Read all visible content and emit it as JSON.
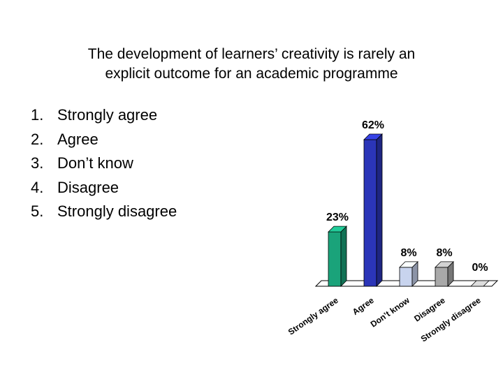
{
  "slide": {
    "title_line1": "The development of learners’ creativity is rarely an",
    "title_line2": "explicit outcome for an academic programme",
    "options": [
      {
        "num": "1.",
        "label": "Strongly agree"
      },
      {
        "num": "2.",
        "label": "Agree"
      },
      {
        "num": "3.",
        "label": "Don’t know"
      },
      {
        "num": "4.",
        "label": "Disagree"
      },
      {
        "num": "5.",
        "label": "Strongly disagree"
      }
    ]
  },
  "chart_data": {
    "type": "bar",
    "categories": [
      "Strongly agree",
      "Agree",
      "Don’t know",
      "Disagree",
      "Strongly disagree"
    ],
    "values": [
      23,
      62,
      8,
      8,
      0
    ],
    "data_labels": [
      "23%",
      "62%",
      "8%",
      "8%",
      "0%"
    ],
    "colors": [
      "#1aa37a",
      "#2b35b8",
      "#c8d4ee",
      "#a9a9a9",
      "#9a9a9a"
    ],
    "style": "3d",
    "ylim": [
      0,
      62
    ]
  }
}
